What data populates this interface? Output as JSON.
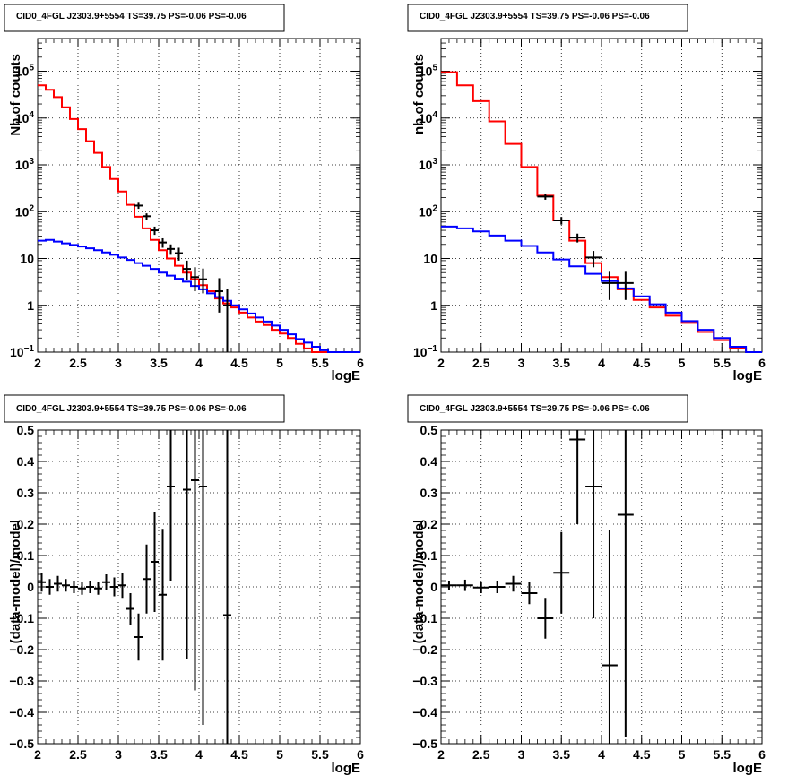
{
  "figure_title": "CID0_4FGL J2303.9+5554 TS=39.75 PS=-0.06 PS=-0.06",
  "colors": {
    "model_total": "#ff0000",
    "model_background": "#0000ff",
    "data": "#000000",
    "grid": "#000000"
  },
  "chart_data": [
    {
      "type": "histogram",
      "title": "CID0_4FGL J2303.9+5554 TS=39.75 PS=-0.06 PS=-0.06",
      "xlabel": "logE",
      "ylabel": "Nb of counts",
      "xlim": [
        2,
        6
      ],
      "ylim": [
        0.1,
        500000
      ],
      "yscale": "log",
      "grid": true,
      "xticks": [
        "2",
        "2.5",
        "3",
        "3.5",
        "4",
        "4.5",
        "5",
        "5.5",
        "6"
      ],
      "bin_edges": [
        2.0,
        2.1,
        2.2,
        2.3,
        2.4,
        2.5,
        2.6,
        2.7,
        2.8,
        2.9,
        3.0,
        3.1,
        3.2,
        3.3,
        3.4,
        3.5,
        3.6,
        3.7,
        3.8,
        3.9,
        4.0,
        4.1,
        4.2,
        4.3,
        4.4,
        4.5,
        4.6,
        4.7,
        4.8,
        4.9,
        5.0,
        5.1,
        5.2,
        5.3,
        5.4,
        5.5,
        5.6,
        5.7,
        5.8,
        5.9,
        6.0
      ],
      "series": [
        {
          "name": "model",
          "style": "step",
          "color": "#ff0000",
          "values": [
            50000,
            40000,
            28000,
            17000,
            9500,
            5800,
            3200,
            1800,
            900,
            500,
            270,
            140,
            78,
            44,
            25,
            15,
            10,
            7,
            5,
            3.6,
            2.7,
            2.0,
            1.4,
            1.1,
            0.9,
            0.7,
            0.55,
            0.45,
            0.38,
            0.3,
            0.25,
            0.2,
            0.15,
            0.12,
            0.1,
            0.1,
            0.1,
            0.1,
            0.1,
            0.1
          ]
        },
        {
          "name": "background",
          "style": "step",
          "color": "#0000ff",
          "values": [
            24,
            25,
            23,
            21,
            19.5,
            18,
            16.5,
            15,
            13.5,
            12,
            10.5,
            9.3,
            8,
            7,
            6,
            5,
            4.3,
            3.7,
            3.2,
            2.6,
            2.2,
            1.8,
            1.5,
            1.25,
            1.0,
            0.82,
            0.67,
            0.55,
            0.45,
            0.37,
            0.3,
            0.24,
            0.19,
            0.16,
            0.13,
            0.11,
            0.1,
            0.1,
            0.1,
            0.1
          ]
        }
      ],
      "data_points": [
        {
          "x": 3.25,
          "y": 135,
          "yerr_low": 20,
          "yerr_high": 20
        },
        {
          "x": 3.35,
          "y": 80,
          "yerr_low": 12,
          "yerr_high": 12
        },
        {
          "x": 3.45,
          "y": 40,
          "yerr_low": 8,
          "yerr_high": 8
        },
        {
          "x": 3.55,
          "y": 22,
          "yerr_low": 5,
          "yerr_high": 5
        },
        {
          "x": 3.65,
          "y": 16,
          "yerr_low": 4,
          "yerr_high": 4
        },
        {
          "x": 3.75,
          "y": 13,
          "yerr_low": 4,
          "yerr_high": 4
        },
        {
          "x": 3.85,
          "y": 6,
          "yerr_low": 2.5,
          "yerr_high": 3
        },
        {
          "x": 3.95,
          "y": 4,
          "yerr_low": 2,
          "yerr_high": 2.5
        },
        {
          "x": 4.05,
          "y": 3.6,
          "yerr_low": 1.8,
          "yerr_high": 2.5
        },
        {
          "x": 4.25,
          "y": 2,
          "yerr_low": 1.3,
          "yerr_high": 1.8
        },
        {
          "x": 4.35,
          "y": 1,
          "yerr_low": 0.9,
          "yerr_high": 1.2
        }
      ]
    },
    {
      "type": "histogram",
      "title": "CID0_4FGL J2303.9+5554 TS=39.75 PS=-0.06 PS=-0.06",
      "xlabel": "logE",
      "ylabel": "nb of counts",
      "xlim": [
        2,
        6
      ],
      "ylim": [
        0.1,
        500000
      ],
      "yscale": "log",
      "grid": true,
      "xticks": [
        "2",
        "2.5",
        "3",
        "3.5",
        "4",
        "4.5",
        "5",
        "5.5",
        "6"
      ],
      "bin_edges": [
        2.0,
        2.2,
        2.4,
        2.6,
        2.8,
        3.0,
        3.2,
        3.4,
        3.6,
        3.8,
        4.0,
        4.2,
        4.4,
        4.6,
        4.8,
        5.0,
        5.2,
        5.4,
        5.6,
        5.8,
        6.0
      ],
      "series": [
        {
          "name": "model",
          "style": "step",
          "color": "#ff0000",
          "values": [
            95000,
            50000,
            23000,
            8500,
            2800,
            900,
            220,
            65,
            24,
            8,
            4,
            2.2,
            1.3,
            0.9,
            0.6,
            0.42,
            0.27,
            0.18,
            0.12,
            0.1
          ]
        },
        {
          "name": "background",
          "style": "step",
          "color": "#0000ff",
          "values": [
            48,
            44,
            38,
            31,
            24,
            18.5,
            13.5,
            9.5,
            6.8,
            4.7,
            3.3,
            2.3,
            1.55,
            1.05,
            0.7,
            0.46,
            0.3,
            0.2,
            0.13,
            0.1
          ]
        }
      ],
      "data_points": [
        {
          "x": 3.3,
          "y": 210,
          "yerr_low": 30,
          "yerr_high": 30
        },
        {
          "x": 3.5,
          "y": 65,
          "yerr_low": 12,
          "yerr_high": 12
        },
        {
          "x": 3.7,
          "y": 28,
          "yerr_low": 6,
          "yerr_high": 6
        },
        {
          "x": 3.9,
          "y": 10.5,
          "yerr_low": 4,
          "yerr_high": 4
        },
        {
          "x": 4.1,
          "y": 3,
          "yerr_low": 1.7,
          "yerr_high": 2.2
        },
        {
          "x": 4.3,
          "y": 3,
          "yerr_low": 1.7,
          "yerr_high": 2.2
        }
      ]
    },
    {
      "type": "scatter",
      "title": "CID0_4FGL J2303.9+5554 TS=39.75 PS=-0.06 PS=-0.06",
      "xlabel": "logE",
      "ylabel": "(data-model)/model",
      "xlim": [
        2,
        6
      ],
      "ylim": [
        -0.5,
        0.5
      ],
      "grid": true,
      "xticks": [
        "2",
        "2.5",
        "3",
        "3.5",
        "4",
        "4.5",
        "5",
        "5.5",
        "6"
      ],
      "yticks": [
        "-0.5",
        "-0.4",
        "-0.3",
        "-0.2",
        "-0.1",
        "0",
        "0.1",
        "0.2",
        "0.3",
        "0.4",
        "0.5"
      ],
      "bin_width": 0.1,
      "data_points": [
        {
          "x": 2.05,
          "y": 0.015,
          "err": 0.03
        },
        {
          "x": 2.15,
          "y": 0.0,
          "err": 0.025
        },
        {
          "x": 2.25,
          "y": 0.01,
          "err": 0.025
        },
        {
          "x": 2.35,
          "y": 0.005,
          "err": 0.02
        },
        {
          "x": 2.45,
          "y": 0.0,
          "err": 0.02
        },
        {
          "x": 2.55,
          "y": -0.005,
          "err": 0.02
        },
        {
          "x": 2.65,
          "y": 0.0,
          "err": 0.02
        },
        {
          "x": 2.75,
          "y": -0.005,
          "err": 0.02
        },
        {
          "x": 2.85,
          "y": 0.015,
          "err": 0.025
        },
        {
          "x": 2.95,
          "y": 0.0,
          "err": 0.03
        },
        {
          "x": 3.05,
          "y": 0.005,
          "err": 0.04
        },
        {
          "x": 3.15,
          "y": -0.07,
          "err": 0.05
        },
        {
          "x": 3.25,
          "y": -0.16,
          "err": 0.075
        },
        {
          "x": 3.35,
          "y": 0.025,
          "err": 0.11
        },
        {
          "x": 3.45,
          "y": 0.08,
          "err": 0.16
        },
        {
          "x": 3.55,
          "y": -0.025,
          "err": 0.21
        },
        {
          "x": 3.65,
          "y": 0.32,
          "err": 0.3
        },
        {
          "x": 3.85,
          "y": 0.31,
          "err": 0.54
        },
        {
          "x": 3.95,
          "y": 0.34,
          "err": 0.67
        },
        {
          "x": 4.05,
          "y": 0.32,
          "err": 0.76
        },
        {
          "x": 4.35,
          "y": -0.09,
          "err": 0.95
        }
      ]
    },
    {
      "type": "scatter",
      "title": "CID0_4FGL J2303.9+5554 TS=39.75 PS=-0.06 PS=-0.06",
      "xlabel": "logE",
      "ylabel": "(data-model)/model",
      "xlim": [
        2,
        6
      ],
      "ylim": [
        -0.5,
        0.5
      ],
      "grid": true,
      "xticks": [
        "2",
        "2.5",
        "3",
        "3.5",
        "4",
        "4.5",
        "5",
        "5.5",
        "6"
      ],
      "yticks": [
        "-0.5",
        "-0.4",
        "-0.3",
        "-0.2",
        "-0.1",
        "0",
        "0.1",
        "0.2",
        "0.3",
        "0.4",
        "0.5"
      ],
      "bin_width": 0.2,
      "data_points": [
        {
          "x": 2.1,
          "y": 0.005,
          "err": 0.015
        },
        {
          "x": 2.3,
          "y": 0.005,
          "err": 0.018
        },
        {
          "x": 2.5,
          "y": -0.002,
          "err": 0.018
        },
        {
          "x": 2.7,
          "y": 0.0,
          "err": 0.02
        },
        {
          "x": 2.9,
          "y": 0.01,
          "err": 0.025
        },
        {
          "x": 3.1,
          "y": -0.02,
          "err": 0.035
        },
        {
          "x": 3.3,
          "y": -0.1,
          "err": 0.065
        },
        {
          "x": 3.5,
          "y": 0.045,
          "err": 0.13
        },
        {
          "x": 3.7,
          "y": 0.47,
          "err": 0.27
        },
        {
          "x": 3.9,
          "y": 0.32,
          "err": 0.42
        },
        {
          "x": 4.1,
          "y": -0.25,
          "err": 0.43
        },
        {
          "x": 4.3,
          "y": 0.23,
          "err": 0.71
        }
      ]
    }
  ]
}
